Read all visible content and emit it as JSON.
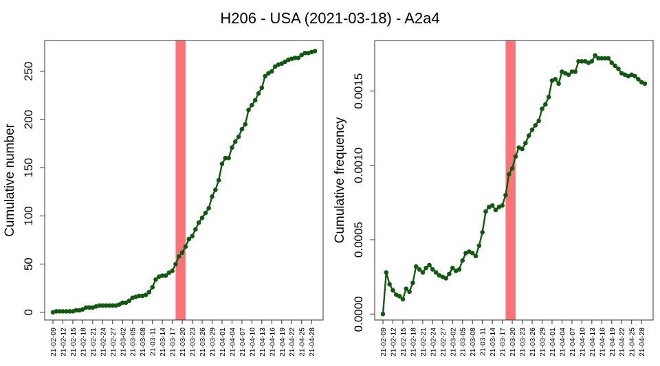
{
  "figure": {
    "title": "H206 - USA (2021-03-18) - A2a4",
    "colors": {
      "line": "#0f5a0f",
      "point": "#0f5a0f",
      "highlight": "#ff7377",
      "axis": "#333333"
    }
  },
  "chart_data": [
    {
      "type": "line",
      "ylabel": "Cumulative number",
      "xlabel": "",
      "ylim": [
        -8,
        282
      ],
      "yticks": [
        "0",
        "50",
        "100",
        "150",
        "200",
        "250"
      ],
      "yticks_values": [
        0,
        50,
        100,
        150,
        200,
        250
      ],
      "highlight_range": [
        "21-03-18",
        "21-03-21"
      ],
      "xticks": [
        "21-02-09",
        "21-02-12",
        "21-02-15",
        "21-02-18",
        "21-02-21",
        "21-02-24",
        "21-02-27",
        "21-03-02",
        "21-03-05",
        "21-03-08",
        "21-03-11",
        "21-03-14",
        "21-03-17",
        "21-03-20",
        "21-03-23",
        "21-03-26",
        "21-03-29",
        "21-04-01",
        "21-04-04",
        "21-04-07",
        "21-04-10",
        "21-04-13",
        "21-04-16",
        "21-04-19",
        "21-04-22",
        "21-04-25",
        "21-04-28"
      ],
      "x": [
        "21-02-09",
        "21-02-10",
        "21-02-11",
        "21-02-12",
        "21-02-13",
        "21-02-14",
        "21-02-15",
        "21-02-16",
        "21-02-17",
        "21-02-18",
        "21-02-19",
        "21-02-20",
        "21-02-21",
        "21-02-22",
        "21-02-23",
        "21-02-24",
        "21-02-25",
        "21-02-26",
        "21-02-27",
        "21-02-28",
        "21-03-01",
        "21-03-02",
        "21-03-03",
        "21-03-04",
        "21-03-05",
        "21-03-06",
        "21-03-07",
        "21-03-08",
        "21-03-09",
        "21-03-10",
        "21-03-11",
        "21-03-12",
        "21-03-13",
        "21-03-14",
        "21-03-15",
        "21-03-16",
        "21-03-17",
        "21-03-18",
        "21-03-19",
        "21-03-20",
        "21-03-21",
        "21-03-22",
        "21-03-23",
        "21-03-24",
        "21-03-25",
        "21-03-26",
        "21-03-27",
        "21-03-28",
        "21-03-29",
        "21-03-30",
        "21-03-31",
        "21-04-01",
        "21-04-02",
        "21-04-03",
        "21-04-04",
        "21-04-05",
        "21-04-06",
        "21-04-07",
        "21-04-08",
        "21-04-09",
        "21-04-10",
        "21-04-11",
        "21-04-12",
        "21-04-13",
        "21-04-14",
        "21-04-15",
        "21-04-16",
        "21-04-17",
        "21-04-18",
        "21-04-19",
        "21-04-20",
        "21-04-21",
        "21-04-22",
        "21-04-23",
        "21-04-24",
        "21-04-25",
        "21-04-26",
        "21-04-27",
        "21-04-28",
        "21-04-29"
      ],
      "values": [
        0,
        1,
        1,
        1,
        1,
        1,
        1,
        2,
        2,
        3,
        5,
        5,
        5,
        6,
        7,
        7,
        7,
        7,
        7,
        7,
        8,
        10,
        10,
        12,
        15,
        16,
        17,
        17,
        18,
        21,
        26,
        34,
        37,
        38,
        38,
        41,
        43,
        50,
        58,
        62,
        68,
        76,
        79,
        86,
        93,
        98,
        103,
        108,
        120,
        127,
        137,
        154,
        160,
        160,
        171,
        177,
        182,
        190,
        195,
        210,
        215,
        220,
        227,
        233,
        245,
        248,
        250,
        255,
        257,
        258,
        260,
        262,
        263,
        264,
        264,
        267,
        269,
        269,
        270,
        271
      ]
    },
    {
      "type": "line",
      "ylabel": "Cumulative frequency",
      "xlabel": "",
      "ylim": [
        -4e-05,
        0.00184
      ],
      "yticks": [
        "0.0000",
        "0.0005",
        "0.0010",
        "0.0015"
      ],
      "yticks_values": [
        0,
        0.0005,
        0.001,
        0.0015
      ],
      "highlight_range": [
        "21-03-18",
        "21-03-21"
      ],
      "xticks": [
        "21-02-09",
        "21-02-12",
        "21-02-15",
        "21-02-18",
        "21-02-21",
        "21-02-24",
        "21-02-27",
        "21-03-02",
        "21-03-05",
        "21-03-08",
        "21-03-11",
        "21-03-14",
        "21-03-17",
        "21-03-20",
        "21-03-23",
        "21-03-26",
        "21-03-29",
        "21-04-01",
        "21-04-04",
        "21-04-07",
        "21-04-10",
        "21-04-13",
        "21-04-16",
        "21-04-19",
        "21-04-22",
        "21-04-25",
        "21-04-28"
      ],
      "x": [
        "21-02-09",
        "21-02-10",
        "21-02-11",
        "21-02-12",
        "21-02-13",
        "21-02-14",
        "21-02-15",
        "21-02-16",
        "21-02-17",
        "21-02-18",
        "21-02-19",
        "21-02-20",
        "21-02-21",
        "21-02-22",
        "21-02-23",
        "21-02-24",
        "21-02-25",
        "21-02-26",
        "21-02-27",
        "21-02-28",
        "21-03-01",
        "21-03-02",
        "21-03-03",
        "21-03-04",
        "21-03-05",
        "21-03-06",
        "21-03-07",
        "21-03-08",
        "21-03-09",
        "21-03-10",
        "21-03-11",
        "21-03-12",
        "21-03-13",
        "21-03-14",
        "21-03-15",
        "21-03-16",
        "21-03-17",
        "21-03-18",
        "21-03-19",
        "21-03-20",
        "21-03-21",
        "21-03-22",
        "21-03-23",
        "21-03-24",
        "21-03-25",
        "21-03-26",
        "21-03-27",
        "21-03-28",
        "21-03-29",
        "21-03-30",
        "21-03-31",
        "21-04-01",
        "21-04-02",
        "21-04-03",
        "21-04-04",
        "21-04-05",
        "21-04-06",
        "21-04-07",
        "21-04-08",
        "21-04-09",
        "21-04-10",
        "21-04-11",
        "21-04-12",
        "21-04-13",
        "21-04-14",
        "21-04-15",
        "21-04-16",
        "21-04-17",
        "21-04-18",
        "21-04-19",
        "21-04-20",
        "21-04-21",
        "21-04-22",
        "21-04-23",
        "21-04-24",
        "21-04-25",
        "21-04-26",
        "21-04-27",
        "21-04-28",
        "21-04-29"
      ],
      "values": [
        0.0,
        0.00028,
        0.0002,
        0.00016,
        0.00013,
        0.00012,
        0.0001,
        0.00017,
        0.00015,
        0.00021,
        0.00032,
        0.0003,
        0.00028,
        0.00031,
        0.00033,
        0.0003,
        0.00028,
        0.00026,
        0.00025,
        0.00024,
        0.00027,
        0.00031,
        0.00029,
        0.0003,
        0.00036,
        0.00041,
        0.00042,
        0.00041,
        0.00039,
        0.00046,
        0.00055,
        0.00069,
        0.00072,
        0.00073,
        0.0007,
        0.00072,
        0.00073,
        0.0008,
        0.00094,
        0.00098,
        0.00106,
        0.00112,
        0.00111,
        0.00115,
        0.0012,
        0.00124,
        0.00127,
        0.0013,
        0.00138,
        0.00141,
        0.00146,
        0.00157,
        0.00158,
        0.00155,
        0.00163,
        0.00162,
        0.00161,
        0.00163,
        0.00163,
        0.0017,
        0.0017,
        0.0017,
        0.00169,
        0.0017,
        0.00174,
        0.00172,
        0.00172,
        0.00172,
        0.00172,
        0.00169,
        0.00167,
        0.00165,
        0.00162,
        0.00161,
        0.0016,
        0.00161,
        0.0016,
        0.00158,
        0.00156,
        0.00155
      ]
    }
  ]
}
